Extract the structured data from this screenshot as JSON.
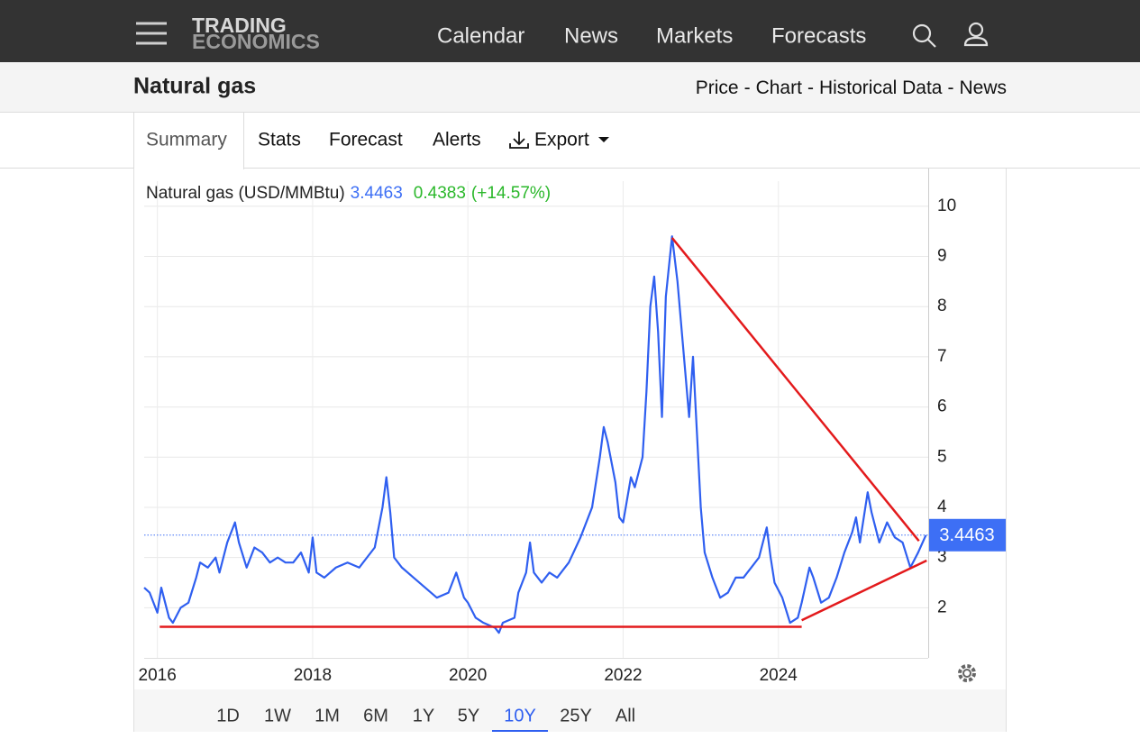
{
  "nav": {
    "brand": [
      "TRADING",
      "ECONOMICS"
    ],
    "links": [
      "Calendar",
      "News",
      "Markets",
      "Forecasts"
    ]
  },
  "header": {
    "title": "Natural gas",
    "links": [
      "Price",
      "Chart",
      "Historical Data",
      "News"
    ],
    "separator": "-"
  },
  "tabs": [
    "Summary",
    "Stats",
    "Forecast",
    "Alerts",
    "Export"
  ],
  "active_tab": "Summary",
  "chart_data": {
    "type": "line",
    "x": [
      2015.83,
      2015.9,
      2016.0,
      2016.05,
      2016.15,
      2016.2,
      2016.3,
      2016.4,
      2016.5,
      2016.55,
      2016.65,
      2016.75,
      2016.8,
      2016.9,
      2017.0,
      2017.05,
      2017.15,
      2017.25,
      2017.35,
      2017.45,
      2017.55,
      2017.65,
      2017.75,
      2017.85,
      2017.95,
      2018.0,
      2018.05,
      2018.15,
      2018.3,
      2018.45,
      2018.6,
      2018.7,
      2018.8,
      2018.9,
      2018.95,
      2019.0,
      2019.05,
      2019.15,
      2019.3,
      2019.45,
      2019.6,
      2019.75,
      2019.85,
      2019.95,
      2020.0,
      2020.1,
      2020.2,
      2020.35,
      2020.4,
      2020.45,
      2020.6,
      2020.65,
      2020.75,
      2020.8,
      2020.85,
      2020.95,
      2021.05,
      2021.15,
      2021.3,
      2021.45,
      2021.6,
      2021.7,
      2021.75,
      2021.8,
      2021.9,
      2021.95,
      2022.0,
      2022.1,
      2022.15,
      2022.25,
      2022.3,
      2022.35,
      2022.4,
      2022.45,
      2022.5,
      2022.55,
      2022.63,
      2022.7,
      2022.8,
      2022.85,
      2022.9,
      2022.95,
      2023.0,
      2023.05,
      2023.15,
      2023.25,
      2023.35,
      2023.45,
      2023.55,
      2023.65,
      2023.75,
      2023.85,
      2023.9,
      2023.95,
      2024.05,
      2024.15,
      2024.25,
      2024.3,
      2024.4,
      2024.45,
      2024.55,
      2024.65,
      2024.75,
      2024.85,
      2024.95,
      2025.0,
      2025.05,
      2025.15,
      2025.2,
      2025.3,
      2025.4,
      2025.5,
      2025.6,
      2025.7,
      2025.8,
      2025.9
    ],
    "series": [
      {
        "name": "Natural gas (USD/MMBtu)",
        "color": "#2f5ff0",
        "values": [
          2.4,
          2.3,
          1.9,
          2.4,
          1.8,
          1.7,
          2.0,
          2.1,
          2.6,
          2.9,
          2.8,
          3.0,
          2.7,
          3.3,
          3.7,
          3.3,
          2.8,
          3.2,
          3.1,
          2.9,
          3.0,
          2.9,
          2.9,
          3.1,
          2.7,
          3.4,
          2.7,
          2.6,
          2.8,
          2.9,
          2.8,
          3.0,
          3.2,
          4.0,
          4.6,
          3.9,
          3.0,
          2.8,
          2.6,
          2.4,
          2.2,
          2.3,
          2.7,
          2.2,
          2.1,
          1.8,
          1.7,
          1.6,
          1.5,
          1.7,
          1.8,
          2.3,
          2.7,
          3.3,
          2.7,
          2.5,
          2.7,
          2.6,
          2.9,
          3.4,
          4.0,
          5.0,
          5.6,
          5.3,
          4.5,
          3.8,
          3.7,
          4.6,
          4.4,
          5.0,
          6.3,
          8.0,
          8.6,
          7.5,
          5.8,
          8.2,
          9.4,
          8.5,
          6.7,
          5.8,
          7.0,
          5.5,
          4.0,
          3.1,
          2.6,
          2.2,
          2.3,
          2.6,
          2.6,
          2.8,
          3.0,
          3.6,
          3.0,
          2.5,
          2.2,
          1.7,
          1.8,
          2.1,
          2.8,
          2.6,
          2.1,
          2.2,
          2.6,
          3.1,
          3.5,
          3.8,
          3.3,
          4.3,
          3.9,
          3.3,
          3.7,
          3.4,
          3.3,
          2.8,
          3.1,
          3.4463
        ]
      }
    ],
    "last_value": 3.4463,
    "last_color": "#3d6ff5",
    "change": 0.4383,
    "change_label": "(+14.57%)",
    "change_color": "#2bb82b",
    "xlim": [
      2015.83,
      2025.93
    ],
    "xticks": [
      2016,
      2018,
      2020,
      2022,
      2024
    ],
    "ylim": [
      1,
      10.5
    ],
    "yticks": [
      2,
      3,
      4,
      5,
      6,
      7,
      8,
      9,
      10
    ],
    "grid": true,
    "trendlines": [
      {
        "color": "#e31a1c",
        "x": [
          2016.03,
          2024.3
        ],
        "y": [
          1.62,
          1.62
        ]
      },
      {
        "color": "#e31a1c",
        "x": [
          2024.3,
          2025.91
        ],
        "y": [
          1.75,
          2.94
        ]
      },
      {
        "color": "#e31a1c",
        "x": [
          2022.63,
          2025.81
        ],
        "y": [
          9.37,
          3.33
        ]
      }
    ]
  },
  "ranges": [
    "1D",
    "1W",
    "1M",
    "6M",
    "1Y",
    "5Y",
    "10Y",
    "25Y",
    "All"
  ],
  "active_range": "10Y"
}
